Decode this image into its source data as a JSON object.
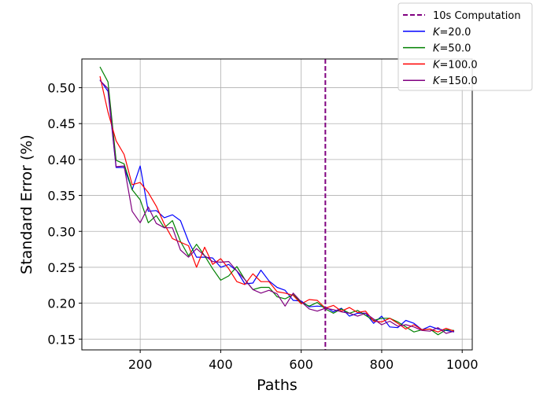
{
  "chart_data": {
    "type": "line",
    "xlabel": "Paths",
    "ylabel": "Standard Error (%)",
    "xlim": [
      55,
      1025
    ],
    "ylim": [
      0.135,
      0.54
    ],
    "x_ticks": [
      200,
      400,
      600,
      800,
      1000
    ],
    "x_tick_labels": [
      "200",
      "400",
      "600",
      "800",
      "1000"
    ],
    "y_ticks": [
      0.15,
      0.2,
      0.25,
      0.3,
      0.35,
      0.4,
      0.45,
      0.5
    ],
    "y_tick_labels": [
      "0.15",
      "0.20",
      "0.25",
      "0.30",
      "0.35",
      "0.40",
      "0.45",
      "0.50"
    ],
    "grid": true,
    "legend_position": "top-right",
    "vline": {
      "x": 660,
      "label": "10s Computation",
      "color": "#800080",
      "style": "dashed"
    },
    "x": [
      100,
      120,
      140,
      160,
      180,
      200,
      220,
      240,
      260,
      280,
      300,
      320,
      340,
      360,
      380,
      400,
      420,
      440,
      460,
      480,
      500,
      520,
      540,
      560,
      580,
      600,
      620,
      640,
      660,
      680,
      700,
      720,
      740,
      760,
      780,
      800,
      820,
      840,
      860,
      880,
      900,
      920,
      940,
      960,
      980
    ],
    "series": [
      {
        "name": "K=20.0",
        "label_prefix": "K",
        "label_suffix": "=20.0",
        "color": "#0000ff",
        "values": [
          0.511,
          0.495,
          0.389,
          0.389,
          0.358,
          0.391,
          0.328,
          0.329,
          0.319,
          0.323,
          0.315,
          0.286,
          0.264,
          0.264,
          0.263,
          0.25,
          0.254,
          0.245,
          0.227,
          0.228,
          0.246,
          0.231,
          0.222,
          0.218,
          0.204,
          0.203,
          0.195,
          0.196,
          0.195,
          0.188,
          0.193,
          0.182,
          0.186,
          0.186,
          0.172,
          0.182,
          0.167,
          0.166,
          0.176,
          0.172,
          0.163,
          0.168,
          0.164,
          0.162,
          0.16
        ]
      },
      {
        "name": "K=50.0",
        "label_prefix": "K",
        "label_suffix": "=50.0",
        "color": "#008000",
        "values": [
          0.529,
          0.508,
          0.399,
          0.394,
          0.358,
          0.344,
          0.312,
          0.322,
          0.305,
          0.315,
          0.286,
          0.266,
          0.282,
          0.266,
          0.248,
          0.232,
          0.238,
          0.251,
          0.233,
          0.219,
          0.222,
          0.222,
          0.209,
          0.206,
          0.212,
          0.201,
          0.196,
          0.201,
          0.192,
          0.186,
          0.192,
          0.186,
          0.19,
          0.183,
          0.176,
          0.179,
          0.179,
          0.174,
          0.167,
          0.16,
          0.163,
          0.164,
          0.156,
          0.163,
          0.162
        ]
      },
      {
        "name": "K=100.0",
        "label_prefix": "K",
        "label_suffix": "=100.0",
        "color": "#ff0000",
        "values": [
          0.516,
          0.466,
          0.426,
          0.407,
          0.365,
          0.368,
          0.354,
          0.335,
          0.31,
          0.29,
          0.285,
          0.28,
          0.25,
          0.278,
          0.254,
          0.262,
          0.248,
          0.23,
          0.226,
          0.241,
          0.23,
          0.23,
          0.216,
          0.214,
          0.211,
          0.199,
          0.205,
          0.204,
          0.193,
          0.197,
          0.189,
          0.194,
          0.187,
          0.189,
          0.175,
          0.174,
          0.179,
          0.172,
          0.164,
          0.17,
          0.163,
          0.164,
          0.16,
          0.165,
          0.161
        ]
      },
      {
        "name": "K=150.0",
        "label_prefix": "K",
        "label_suffix": "=150.0",
        "color": "#800080",
        "values": [
          0.51,
          0.499,
          0.39,
          0.391,
          0.328,
          0.312,
          0.334,
          0.311,
          0.305,
          0.305,
          0.274,
          0.264,
          0.276,
          0.266,
          0.258,
          0.257,
          0.258,
          0.245,
          0.233,
          0.219,
          0.214,
          0.218,
          0.213,
          0.196,
          0.214,
          0.202,
          0.192,
          0.189,
          0.193,
          0.191,
          0.188,
          0.186,
          0.182,
          0.186,
          0.178,
          0.17,
          0.175,
          0.168,
          0.17,
          0.167,
          0.162,
          0.161,
          0.166,
          0.158,
          0.161
        ]
      }
    ]
  }
}
